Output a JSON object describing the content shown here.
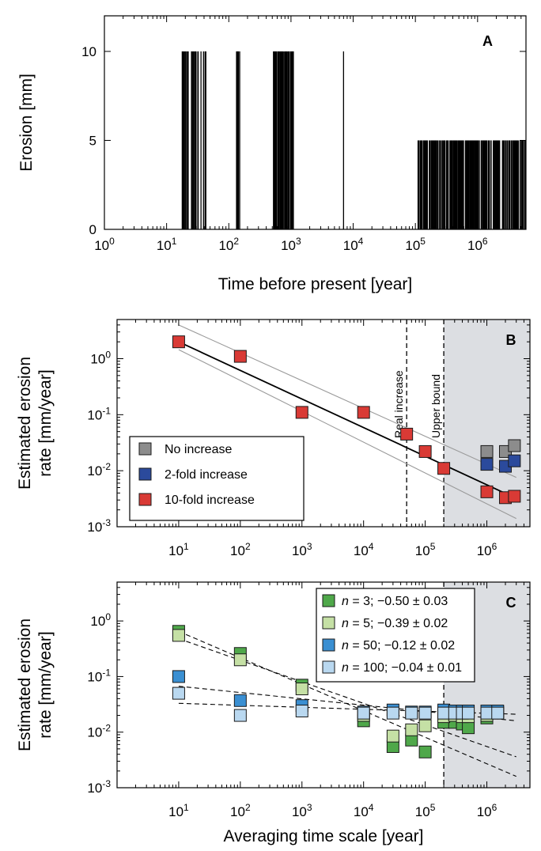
{
  "chart_data": [
    {
      "panel": "A",
      "type": "bar",
      "xlabel": "Time before present [year]",
      "ylabel": "Erosion [mm]",
      "xscale": "log",
      "xlim": [
        1,
        6000000
      ],
      "ylim": [
        0,
        12
      ],
      "x_ticks": [
        1,
        10,
        100,
        1000,
        10000,
        100000,
        1000000
      ],
      "x_tick_labels": [
        [
          "10",
          "0"
        ],
        [
          "10",
          "1"
        ],
        [
          "10",
          "2"
        ],
        [
          "10",
          "3"
        ],
        [
          "10",
          "4"
        ],
        [
          "10",
          "5"
        ],
        [
          "10",
          "6"
        ]
      ],
      "y_ticks": [
        0,
        5,
        10
      ],
      "y_tick_labels": [
        "0",
        "5",
        "10"
      ],
      "events": [
        {
          "t_min": 17,
          "t_max": 44,
          "value": 10,
          "count": 30
        },
        {
          "t_min": 130,
          "t_max": 150,
          "value": 10,
          "count": 8
        },
        {
          "t_min": 520,
          "t_max": 1100,
          "value": 10,
          "count": 60
        },
        {
          "t_min": 7000,
          "t_max": 7000,
          "value": 10,
          "count": 1
        },
        {
          "t_min": 110000,
          "t_max": 6000000,
          "value": 5,
          "count": 220
        }
      ]
    },
    {
      "panel": "B",
      "type": "scatter",
      "xlabel": "",
      "ylabel": "Estimated erosion rate [mm/year]",
      "ylabel_lines": [
        "Estimated erosion",
        "rate [mm/year]"
      ],
      "xscale": "log",
      "yscale": "log",
      "xlim": [
        1,
        5000000
      ],
      "ylim": [
        0.001,
        5
      ],
      "x_ticks": [
        10,
        100,
        1000,
        10000,
        100000,
        1000000
      ],
      "x_tick_labels": [
        [
          "10",
          "1"
        ],
        [
          "10",
          "2"
        ],
        [
          "10",
          "3"
        ],
        [
          "10",
          "4"
        ],
        [
          "10",
          "5"
        ],
        [
          "10",
          "6"
        ]
      ],
      "y_ticks": [
        0.001,
        0.01,
        0.1,
        1
      ],
      "y_tick_labels": [
        [
          "10",
          "-3"
        ],
        [
          "10",
          "-2"
        ],
        [
          "10",
          "-1"
        ],
        [
          "10",
          "0"
        ]
      ],
      "vlines": [
        {
          "x": 50000,
          "label": "Real increase"
        },
        {
          "x": 200000,
          "label": "Upper bound"
        }
      ],
      "shaded_region": [
        200000,
        5000000
      ],
      "legend_position": "lower-left",
      "series": [
        {
          "name": "No increase",
          "color": "#8c8c8c",
          "x": [
            1000000,
            2000000,
            2800000
          ],
          "y": [
            0.022,
            0.022,
            0.028
          ]
        },
        {
          "name": "2-fold increase",
          "color": "#2b4a9c",
          "x": [
            1000000,
            2000000,
            2800000
          ],
          "y": [
            0.013,
            0.012,
            0.015
          ]
        },
        {
          "name": "10-fold increase",
          "color": "#d93a35",
          "x": [
            10,
            100,
            1000,
            10000,
            50000,
            100000,
            200000,
            1000000,
            2000000,
            2800000
          ],
          "y": [
            2.0,
            1.1,
            0.11,
            0.11,
            0.045,
            0.022,
            0.011,
            0.0042,
            0.0033,
            0.0035
          ]
        }
      ],
      "fit_lines": [
        {
          "x": [
            10,
            3000000
          ],
          "y": [
            2.0,
            0.0032
          ],
          "style": "solid",
          "color": "#000000"
        },
        {
          "x": [
            10,
            3000000
          ],
          "y": [
            4.0,
            0.0076
          ],
          "style": "solid",
          "color": "#9a9a9a"
        },
        {
          "x": [
            10,
            3000000
          ],
          "y": [
            1.45,
            0.0014
          ],
          "style": "solid",
          "color": "#9a9a9a"
        }
      ]
    },
    {
      "panel": "C",
      "type": "scatter",
      "xlabel": "Averaging time scale [year]",
      "ylabel": "Estimated erosion rate [mm/year]",
      "ylabel_lines": [
        "Estimated erosion",
        "rate [mm/year]"
      ],
      "xscale": "log",
      "yscale": "log",
      "xlim": [
        1,
        5000000
      ],
      "ylim": [
        0.001,
        5
      ],
      "x_ticks": [
        10,
        100,
        1000,
        10000,
        100000,
        1000000
      ],
      "x_tick_labels": [
        [
          "10",
          "1"
        ],
        [
          "10",
          "2"
        ],
        [
          "10",
          "3"
        ],
        [
          "10",
          "4"
        ],
        [
          "10",
          "5"
        ],
        [
          "10",
          "6"
        ]
      ],
      "y_ticks": [
        0.001,
        0.01,
        0.1,
        1
      ],
      "y_tick_labels": [
        [
          "10",
          "-3"
        ],
        [
          "10",
          "-2"
        ],
        [
          "10",
          "-1"
        ],
        [
          "10",
          "0"
        ]
      ],
      "vlines": [
        {
          "x": 200000,
          "label": ""
        }
      ],
      "shaded_region": [
        200000,
        5000000
      ],
      "legend_position": "top-right",
      "series": [
        {
          "n": "3",
          "stats": "; −0.50 ± 0.03",
          "color": "#4fa84a",
          "x": [
            10,
            100,
            1000,
            10000,
            30000,
            60000,
            100000,
            200000,
            300000,
            400000,
            500000,
            1000000,
            1500000
          ],
          "y": [
            0.65,
            0.26,
            0.07,
            0.016,
            0.0055,
            0.0072,
            0.0044,
            0.015,
            0.015,
            0.014,
            0.012,
            0.018,
            0.022
          ]
        },
        {
          "n": "5",
          "stats": "; −0.39 ± 0.02",
          "color": "#c5e0a5",
          "x": [
            10,
            100,
            1000,
            10000,
            30000,
            60000,
            100000,
            200000,
            300000,
            400000,
            500000,
            1000000,
            1500000
          ],
          "y": [
            0.55,
            0.2,
            0.06,
            0.02,
            0.0085,
            0.011,
            0.013,
            0.019,
            0.02,
            0.019,
            0.019,
            0.02,
            0.023
          ]
        },
        {
          "n": "50",
          "stats": "; −0.12 ± 0.02",
          "color": "#3a8fd2",
          "x": [
            10,
            100,
            1000,
            10000,
            30000,
            60000,
            100000,
            200000,
            300000,
            400000,
            500000,
            1000000,
            1500000
          ],
          "y": [
            0.1,
            0.037,
            0.03,
            0.023,
            0.025,
            0.023,
            0.023,
            0.025,
            0.024,
            0.024,
            0.024,
            0.024,
            0.024
          ]
        },
        {
          "n": "100",
          "stats": "; −0.04 ± 0.01",
          "color": "#b9d8f0",
          "x": [
            10,
            100,
            1000,
            10000,
            30000,
            60000,
            100000,
            200000,
            300000,
            400000,
            500000,
            1000000,
            1500000
          ],
          "y": [
            0.05,
            0.02,
            0.024,
            0.022,
            0.022,
            0.022,
            0.022,
            0.022,
            0.022,
            0.022,
            0.022,
            0.022,
            0.022
          ]
        }
      ],
      "legend_label_prefix": "n",
      "legend_label_separator": " = ",
      "fit_lines": [
        {
          "x": [
            10,
            3000000
          ],
          "y": [
            0.65,
            0.0016
          ],
          "style": "dashed",
          "color": "#000000"
        },
        {
          "x": [
            10,
            3000000
          ],
          "y": [
            0.48,
            0.0036
          ],
          "style": "dashed",
          "color": "#000000"
        },
        {
          "x": [
            10,
            3000000
          ],
          "y": [
            0.067,
            0.016
          ],
          "style": "dashed",
          "color": "#000000"
        },
        {
          "x": [
            10,
            3000000
          ],
          "y": [
            0.033,
            0.021
          ],
          "style": "dashed",
          "color": "#000000"
        }
      ]
    }
  ]
}
